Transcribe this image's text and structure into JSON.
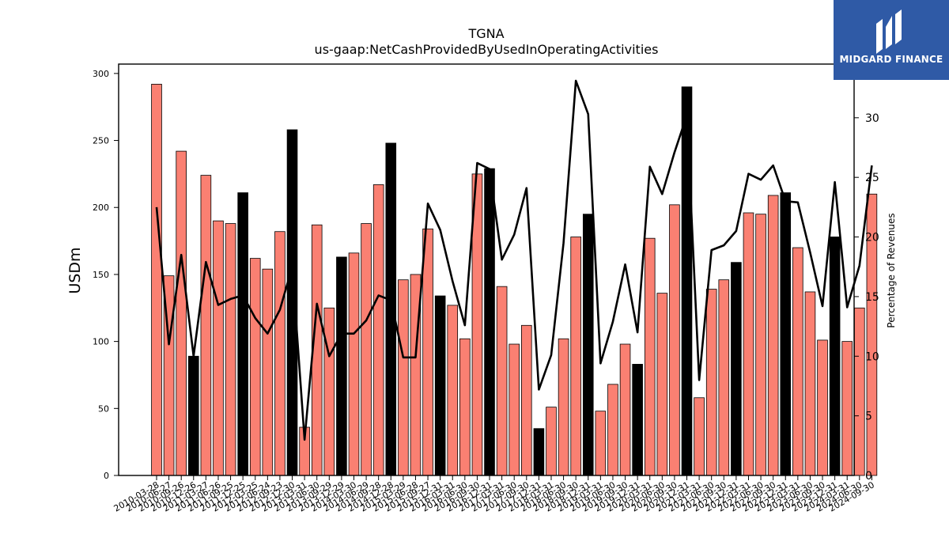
{
  "brand": {
    "name": "MIDGARD FINANCE",
    "bg_color": "#2f5aa6"
  },
  "chart_data": {
    "type": "bar",
    "title": "TGNA",
    "subtitle": "us-gaap:NetCashProvidedByUsedInOperatingActivities",
    "ylabel": "USDm",
    "y2label": "Percentage of Revenues",
    "ylim": [
      0,
      307
    ],
    "y2lim": [
      0,
      34.5
    ],
    "yticks": [
      0,
      50,
      100,
      150,
      200,
      250,
      300
    ],
    "y2ticks": [
      0,
      5,
      10,
      15,
      20,
      25,
      30
    ],
    "bar_color": "#fa8072",
    "q4_bar_color": "#000000",
    "line_color": "#000000",
    "categories": [
      "2010-03-28",
      "2010-06-27",
      "2010-09-26",
      "2010-12-26",
      "2011-03-27",
      "2011-06-26",
      "2011-09-25",
      "2011-12-25",
      "2012-03-25",
      "2012-06-24",
      "2012-09-23",
      "2012-12-30",
      "2013-03-31",
      "2013-06-30",
      "2013-09-29",
      "2013-12-29",
      "2014-03-30",
      "2014-06-29",
      "2014-09-28",
      "2014-12-28",
      "2015-03-29",
      "2015-06-28",
      "2015-09-27",
      "2015-12-31",
      "2016-03-31",
      "2016-06-30",
      "2016-09-30",
      "2016-12-31",
      "2017-03-31",
      "2017-06-30",
      "2017-09-30",
      "2017-12-31",
      "2018-03-31",
      "2018-06-30",
      "2018-09-30",
      "2018-12-31",
      "2019-03-31",
      "2019-06-30",
      "2019-09-30",
      "2019-12-31",
      "2020-03-31",
      "2020-06-30",
      "2020-09-30",
      "2020-12-31",
      "2021-03-31",
      "2021-06-30",
      "2021-09-30",
      "2021-12-31",
      "2022-03-31",
      "2022-06-30",
      "2022-09-30",
      "2022-12-31",
      "2023-03-31",
      "2023-06-30",
      "2023-09-30",
      "2023-12-31",
      "2024-03-31",
      "2024-06-30",
      "2024-09-30"
    ],
    "visible_tick_labels": [
      "2010-03-28",
      "2010-06-27",
      "2010-09-26",
      "2010-12-26",
      "2011-03-27",
      "2011-06-26",
      "2011-09-25",
      "2011-12-25",
      "2012-03-25",
      "2012-06-24",
      "2012-09-23",
      "2012-12-30",
      "2013-03-31",
      "2013-06-30",
      "2013-09-29",
      "2013-12-29",
      "2014-03-30",
      "2014-06-29",
      "2014-09-28",
      "2014-12-28",
      "2015-03-29",
      "2015-06-28",
      "2015-09-27",
      "2015-12-31",
      "2016-03-31",
      "2016-06-30",
      "2016-09-30",
      "2016-12-31",
      "2017-03-31",
      "2017-06-30",
      "2017-09-30",
      "2017-12-31",
      "2018-03-31",
      "2018-06-30",
      "2018-09-30",
      "2018-12-31",
      "2019-03-31",
      "2019-06-30",
      "2019-09-30",
      "2019-12-31",
      "2020-03-31",
      "2020-06-30",
      "2020-09-30",
      "2020-12-31",
      "2021-03-31",
      "2021-06-30",
      "2021-09-30",
      "2021-12-31",
      "2022-03-31",
      "2022-06-30",
      "2022-09-30",
      "2022-12-31",
      "2023-03-31",
      "2023-06-30",
      "2023-09-30",
      "2023-12-31",
      "2024-03-31",
      "2024-06-30",
      "2024-09-30"
    ],
    "series": [
      {
        "values": [
          292,
          149,
          242,
          89,
          224,
          190,
          188,
          211,
          162,
          154,
          182,
          258,
          36,
          187,
          125,
          163,
          166,
          188,
          217,
          248,
          146,
          150,
          184,
          134,
          127,
          102,
          225,
          229,
          141,
          98,
          112,
          35,
          51,
          102,
          178,
          195,
          48,
          68,
          98,
          83,
          177,
          136,
          202,
          290,
          58,
          139,
          146,
          159,
          196,
          195,
          209,
          211,
          170,
          137,
          101,
          178,
          100,
          125,
          210
        ],
        "q4_flags": [
          0,
          0,
          0,
          1,
          0,
          0,
          0,
          1,
          0,
          0,
          0,
          1,
          0,
          0,
          0,
          1,
          0,
          0,
          0,
          1,
          0,
          0,
          0,
          1,
          0,
          0,
          0,
          1,
          0,
          0,
          0,
          1,
          0,
          0,
          0,
          1,
          0,
          0,
          0,
          1,
          0,
          0,
          0,
          1,
          0,
          0,
          0,
          1,
          0,
          0,
          0,
          1,
          0,
          0,
          0,
          1,
          0,
          0,
          0
        ]
      },
      {
        "axis": "right",
        "type": "line",
        "values": [
          22.5,
          11.0,
          18.5,
          10.0,
          17.9,
          14.3,
          14.8,
          15.1,
          13.2,
          11.9,
          13.9,
          17.5,
          3.0,
          14.4,
          10.0,
          11.9,
          11.9,
          13.0,
          15.1,
          14.7,
          9.9,
          9.9,
          22.8,
          20.6,
          16.3,
          12.6,
          26.2,
          25.7,
          18.1,
          20.2,
          24.1,
          7.2,
          10.1,
          19.5,
          33.1,
          30.3,
          9.4,
          12.9,
          17.7,
          12.0,
          25.9,
          23.6,
          27.1,
          30.2,
          8.0,
          18.9,
          19.3,
          20.5,
          25.3,
          24.8,
          26.0,
          23.0,
          22.9,
          18.7,
          14.2,
          24.6,
          14.1,
          17.6,
          26.0
        ]
      }
    ]
  }
}
